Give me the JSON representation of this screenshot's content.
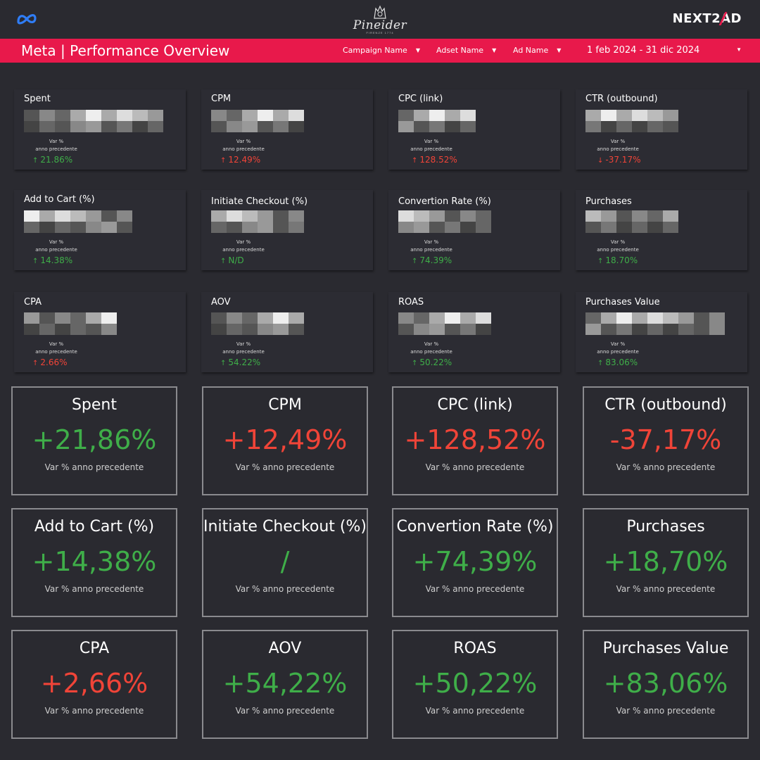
{
  "logos": {
    "left": "meta-infinity-icon",
    "center_script": "Pineider",
    "center_sub": "FIRENZE 1774",
    "right_prefix": "NEXT2",
    "right_suffix": "AD"
  },
  "header": {
    "title": "Meta | Performance Overview",
    "background": "#e8194b",
    "filters": [
      {
        "label": "Campaign Name"
      },
      {
        "label": "Adset Name"
      },
      {
        "label": "Ad Name"
      }
    ],
    "date_range": "1 feb 2024 - 31 dic 2024"
  },
  "colors": {
    "positive": "#3fae49",
    "negative": "#f04438",
    "background": "#2a2a30"
  },
  "small_cards": [
    {
      "title": "Spent",
      "sub1": "Var %",
      "sub2": "anno precedente",
      "var": "21.86%",
      "dir": "up",
      "tone": "pos"
    },
    {
      "title": "CPM",
      "sub1": "Var %",
      "sub2": "anno precedente",
      "var": "12.49%",
      "dir": "up",
      "tone": "neg"
    },
    {
      "title": "CPC (link)",
      "sub1": "Var %",
      "sub2": "anno precedente",
      "var": "128.52%",
      "dir": "up",
      "tone": "neg"
    },
    {
      "title": "CTR (outbound)",
      "sub1": "Var %",
      "sub2": "anno precedente",
      "var": "-37.17%",
      "dir": "down",
      "tone": "neg"
    },
    {
      "title": "Add to Cart (%)",
      "sub1": "Var %",
      "sub2": "anno precedente",
      "var": "14.38%",
      "dir": "up",
      "tone": "pos"
    },
    {
      "title": "Initiate Checkout (%)",
      "sub1": "Var %",
      "sub2": "anno precedente",
      "var": "N/D",
      "dir": "up",
      "tone": "pos"
    },
    {
      "title": "Convertion Rate (%)",
      "sub1": "Var %",
      "sub2": "anno precedente",
      "var": "74.39%",
      "dir": "up",
      "tone": "pos"
    },
    {
      "title": "Purchases",
      "sub1": "Var %",
      "sub2": "anno precedente",
      "var": "18.70%",
      "dir": "up",
      "tone": "pos"
    },
    {
      "title": "CPA",
      "sub1": "Var %",
      "sub2": "anno precedente",
      "var": "2.66%",
      "dir": "up",
      "tone": "neg"
    },
    {
      "title": "AOV",
      "sub1": "Var %",
      "sub2": "anno precedente",
      "var": "54.22%",
      "dir": "up",
      "tone": "pos"
    },
    {
      "title": "ROAS",
      "sub1": "Var %",
      "sub2": "anno precedente",
      "var": "50.22%",
      "dir": "up",
      "tone": "pos"
    },
    {
      "title": "Purchases Value",
      "sub1": "Var %",
      "sub2": "anno precedente",
      "var": "83.06%",
      "dir": "up",
      "tone": "pos"
    }
  ],
  "big_cards": [
    {
      "title": "Spent",
      "value": "+21,86%",
      "sub": "Var % anno precedente",
      "tone": "green"
    },
    {
      "title": "CPM",
      "value": "+12,49%",
      "sub": "Var % anno precedente",
      "tone": "red"
    },
    {
      "title": "CPC (link)",
      "value": "+128,52%",
      "sub": "Var % anno precedente",
      "tone": "red"
    },
    {
      "title": "CTR (outbound)",
      "value": "-37,17%",
      "sub": "Var % anno precedente",
      "tone": "red"
    },
    {
      "title": "Add to Cart (%)",
      "value": "+14,38%",
      "sub": "Var % anno precedente",
      "tone": "green"
    },
    {
      "title": "Initiate Checkout (%)",
      "value": "/",
      "sub": "Var % anno precedente",
      "tone": "green"
    },
    {
      "title": "Convertion Rate (%)",
      "value": "+74,39%",
      "sub": "Var % anno precedente",
      "tone": "green"
    },
    {
      "title": "Purchases",
      "value": "+18,70%",
      "sub": "Var % anno precedente",
      "tone": "green"
    },
    {
      "title": "CPA",
      "value": "+2,66%",
      "sub": "Var % anno precedente",
      "tone": "red"
    },
    {
      "title": "AOV",
      "value": "+54,22%",
      "sub": "Var % anno precedente",
      "tone": "green"
    },
    {
      "title": "ROAS",
      "value": "+50,22%",
      "sub": "Var % anno precedente",
      "tone": "green"
    },
    {
      "title": "Purchases Value",
      "value": "+83,06%",
      "sub": "Var % anno precedente",
      "tone": "green"
    }
  ]
}
